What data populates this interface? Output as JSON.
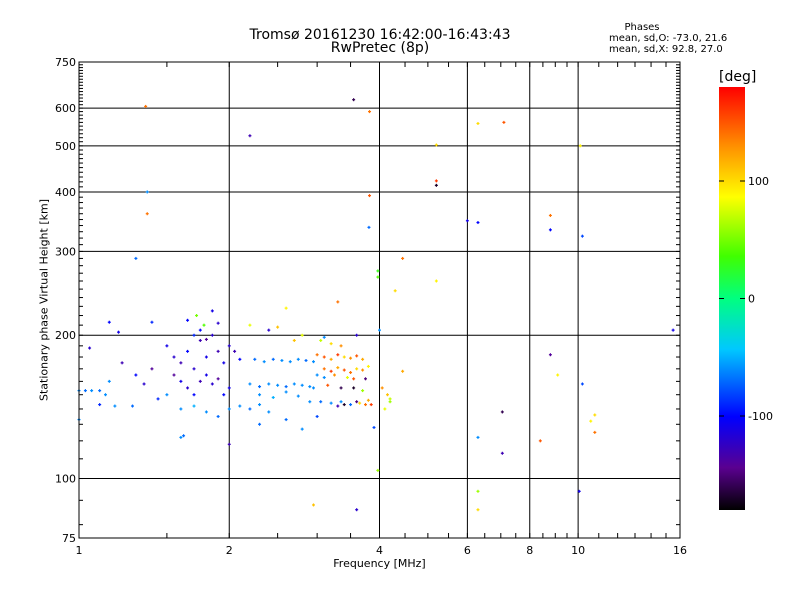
{
  "chart_data": {
    "type": "scatter",
    "title": "Tromsø 20161230 16:42:00-16:43:43",
    "subtitle": "RwPretec (8p)",
    "xlabel": "Frequency [MHz]",
    "ylabel": "Stationary phase Virtual Height [km]",
    "x_scale": "log",
    "y_scale": "log",
    "xlim": [
      1,
      16
    ],
    "ylim": [
      75,
      750
    ],
    "x_ticks": [
      1,
      2,
      4,
      6,
      8,
      10,
      16
    ],
    "x_tick_labels": [
      "1",
      "2",
      "4",
      "6",
      "8",
      "10",
      "16"
    ],
    "y_ticks": [
      75,
      100,
      200,
      300,
      400,
      500,
      600,
      750
    ],
    "y_tick_labels": [
      "75",
      "100",
      "200",
      "300",
      "400",
      "500",
      "600",
      "750"
    ],
    "grid": true,
    "colorbar": {
      "label": "[deg]",
      "range": [
        -180,
        180
      ],
      "ticks": [
        100,
        0,
        -100
      ],
      "tick_labels": [
        "100",
        "0",
        "-100"
      ]
    },
    "stats": {
      "header": "Phases",
      "o_line": "mean, sd,O: -73.0, 21.6",
      "x_line": "mean, sd,X:  92.8, 27.0"
    },
    "points": [
      [
        1.36,
        605,
        140
      ],
      [
        1.37,
        400,
        -60
      ],
      [
        1.37,
        360,
        140
      ],
      [
        1.3,
        290,
        -70
      ],
      [
        2.2,
        525,
        -130
      ],
      [
        3.55,
        625,
        -160
      ],
      [
        3.82,
        590,
        140
      ],
      [
        3.82,
        393,
        150
      ],
      [
        3.81,
        337,
        -70
      ],
      [
        3.97,
        273,
        30
      ],
      [
        4.45,
        290,
        140
      ],
      [
        3.97,
        265,
        40
      ],
      [
        4.3,
        248,
        100
      ],
      [
        5.2,
        502,
        100
      ],
      [
        5.2,
        422,
        160
      ],
      [
        5.2,
        413,
        -170
      ],
      [
        5.2,
        260,
        90
      ],
      [
        6.0,
        348,
        -110
      ],
      [
        6.3,
        345,
        -100
      ],
      [
        6.3,
        557,
        100
      ],
      [
        7.1,
        560,
        150
      ],
      [
        8.8,
        357,
        140
      ],
      [
        8.8,
        333,
        -100
      ],
      [
        10.2,
        323,
        -80
      ],
      [
        10.1,
        500,
        90
      ],
      [
        15.5,
        205,
        -110
      ],
      [
        8.8,
        182,
        -140
      ],
      [
        10.2,
        158,
        -80
      ],
      [
        10.8,
        136,
        100
      ],
      [
        10.8,
        125,
        140
      ],
      [
        10.6,
        132,
        90
      ],
      [
        7.05,
        138,
        -160
      ],
      [
        6.3,
        122,
        -60
      ],
      [
        7.05,
        113,
        -130
      ],
      [
        8.4,
        120,
        150
      ],
      [
        9.1,
        165,
        90
      ],
      [
        6.3,
        94,
        60
      ],
      [
        6.3,
        86,
        100
      ],
      [
        10.05,
        94,
        -110
      ],
      [
        2.95,
        88,
        110
      ],
      [
        3.6,
        86,
        -120
      ],
      [
        3.97,
        104,
        60
      ],
      [
        4.0,
        205,
        -60
      ],
      [
        3.6,
        200,
        -120
      ],
      [
        4.45,
        168,
        120
      ],
      [
        4.2,
        145,
        60
      ],
      [
        4.1,
        140,
        80
      ],
      [
        4.05,
        155,
        130
      ],
      [
        3.9,
        128,
        -80
      ],
      [
        2.0,
        118,
        -130
      ],
      [
        1.6,
        122,
        -60
      ],
      [
        1.62,
        123,
        -70
      ],
      [
        1.15,
        213,
        -100
      ],
      [
        1.2,
        203,
        -110
      ],
      [
        1.4,
        213,
        -90
      ],
      [
        1.05,
        188,
        -120
      ],
      [
        1.0,
        153,
        -60
      ],
      [
        1.03,
        153,
        -70
      ],
      [
        1.06,
        153,
        -60
      ],
      [
        1.1,
        153,
        -70
      ],
      [
        1.13,
        150,
        -60
      ],
      [
        1.0,
        133,
        -60
      ],
      [
        1.1,
        143,
        -90
      ],
      [
        1.18,
        142,
        -60
      ],
      [
        1.15,
        160,
        -60
      ],
      [
        1.22,
        175,
        -130
      ],
      [
        1.3,
        165,
        -100
      ],
      [
        1.35,
        158,
        -120
      ],
      [
        1.4,
        170,
        -140
      ],
      [
        1.28,
        142,
        -70
      ],
      [
        1.44,
        147,
        -90
      ],
      [
        1.5,
        190,
        -110
      ],
      [
        1.55,
        180,
        -120
      ],
      [
        1.6,
        175,
        -130
      ],
      [
        1.65,
        185,
        -100
      ],
      [
        1.7,
        170,
        -120
      ],
      [
        1.75,
        195,
        -130
      ],
      [
        1.8,
        180,
        -110
      ],
      [
        1.85,
        200,
        -120
      ],
      [
        1.9,
        185,
        -130
      ],
      [
        1.95,
        175,
        -110
      ],
      [
        2.0,
        190,
        -120
      ],
      [
        2.05,
        185,
        -130
      ],
      [
        2.1,
        178,
        -100
      ],
      [
        1.55,
        165,
        -140
      ],
      [
        1.6,
        160,
        -110
      ],
      [
        1.65,
        155,
        -120
      ],
      [
        1.7,
        150,
        -100
      ],
      [
        1.75,
        160,
        -130
      ],
      [
        1.8,
        165,
        -110
      ],
      [
        1.85,
        158,
        -120
      ],
      [
        1.9,
        162,
        -140
      ],
      [
        1.95,
        150,
        -100
      ],
      [
        2.0,
        155,
        -110
      ],
      [
        1.5,
        150,
        -60
      ],
      [
        1.6,
        140,
        -60
      ],
      [
        1.7,
        142,
        -50
      ],
      [
        1.8,
        138,
        -60
      ],
      [
        1.9,
        135,
        -70
      ],
      [
        2.0,
        140,
        -60
      ],
      [
        2.1,
        142,
        -60
      ],
      [
        2.2,
        140,
        -70
      ],
      [
        2.3,
        143,
        -60
      ],
      [
        2.4,
        138,
        -60
      ],
      [
        1.65,
        215,
        -100
      ],
      [
        1.72,
        220,
        50
      ],
      [
        1.78,
        210,
        40
      ],
      [
        1.85,
        225,
        -110
      ],
      [
        1.9,
        212,
        -120
      ],
      [
        1.7,
        200,
        -90
      ],
      [
        1.75,
        205,
        -100
      ],
      [
        1.8,
        196,
        -140
      ],
      [
        2.25,
        178,
        -70
      ],
      [
        2.35,
        176,
        -60
      ],
      [
        2.45,
        178,
        -70
      ],
      [
        2.55,
        177,
        -60
      ],
      [
        2.65,
        176,
        -60
      ],
      [
        2.75,
        178,
        -60
      ],
      [
        2.85,
        177,
        -70
      ],
      [
        2.95,
        176,
        -60
      ],
      [
        2.2,
        158,
        -60
      ],
      [
        2.3,
        156,
        -70
      ],
      [
        2.4,
        158,
        -60
      ],
      [
        2.5,
        157,
        -60
      ],
      [
        2.6,
        156,
        -70
      ],
      [
        2.7,
        158,
        -60
      ],
      [
        2.8,
        157,
        -60
      ],
      [
        2.9,
        156,
        -60
      ],
      [
        2.3,
        150,
        -60
      ],
      [
        2.45,
        148,
        -50
      ],
      [
        2.6,
        152,
        -60
      ],
      [
        2.75,
        149,
        -60
      ],
      [
        2.9,
        145,
        -60
      ],
      [
        3.05,
        145,
        -70
      ],
      [
        3.2,
        144,
        -60
      ],
      [
        3.35,
        145,
        -60
      ],
      [
        3.5,
        143,
        -70
      ],
      [
        3.65,
        144,
        100
      ],
      [
        3.75,
        143,
        140
      ],
      [
        3.8,
        146,
        120
      ],
      [
        3.85,
        143,
        160
      ],
      [
        3.6,
        145,
        -150
      ],
      [
        3.4,
        143,
        -170
      ],
      [
        3.3,
        142,
        -130
      ],
      [
        3.0,
        182,
        140
      ],
      [
        3.1,
        180,
        150
      ],
      [
        3.2,
        178,
        120
      ],
      [
        3.3,
        182,
        160
      ],
      [
        3.4,
        180,
        100
      ],
      [
        3.5,
        179,
        130
      ],
      [
        3.6,
        181,
        150
      ],
      [
        3.7,
        178,
        120
      ],
      [
        3.1,
        170,
        140
      ],
      [
        3.2,
        168,
        160
      ],
      [
        3.3,
        171,
        120
      ],
      [
        3.4,
        169,
        150
      ],
      [
        3.5,
        167,
        140
      ],
      [
        3.6,
        170,
        100
      ],
      [
        3.7,
        169,
        130
      ],
      [
        3.8,
        172,
        90
      ],
      [
        3.0,
        165,
        -60
      ],
      [
        3.1,
        163,
        -60
      ],
      [
        3.25,
        165,
        130
      ],
      [
        3.45,
        163,
        80
      ],
      [
        3.55,
        162,
        150
      ],
      [
        3.75,
        162,
        -150
      ],
      [
        3.05,
        195,
        70
      ],
      [
        3.2,
        192,
        100
      ],
      [
        3.35,
        190,
        130
      ],
      [
        2.8,
        200,
        80
      ],
      [
        2.7,
        195,
        110
      ],
      [
        2.95,
        155,
        -60
      ],
      [
        3.15,
        157,
        150
      ],
      [
        3.35,
        155,
        -160
      ],
      [
        3.55,
        155,
        -170
      ],
      [
        3.7,
        153,
        60
      ],
      [
        4.15,
        150,
        110
      ],
      [
        4.2,
        147,
        70
      ],
      [
        2.6,
        228,
        90
      ],
      [
        2.5,
        208,
        110
      ],
      [
        3.3,
        235,
        140
      ],
      [
        3.1,
        198,
        -60
      ],
      [
        2.3,
        130,
        -70
      ],
      [
        2.6,
        133,
        -70
      ],
      [
        2.8,
        127,
        -60
      ],
      [
        3.0,
        135,
        -80
      ],
      [
        2.2,
        210,
        80
      ],
      [
        2.4,
        205,
        -120
      ]
    ]
  }
}
